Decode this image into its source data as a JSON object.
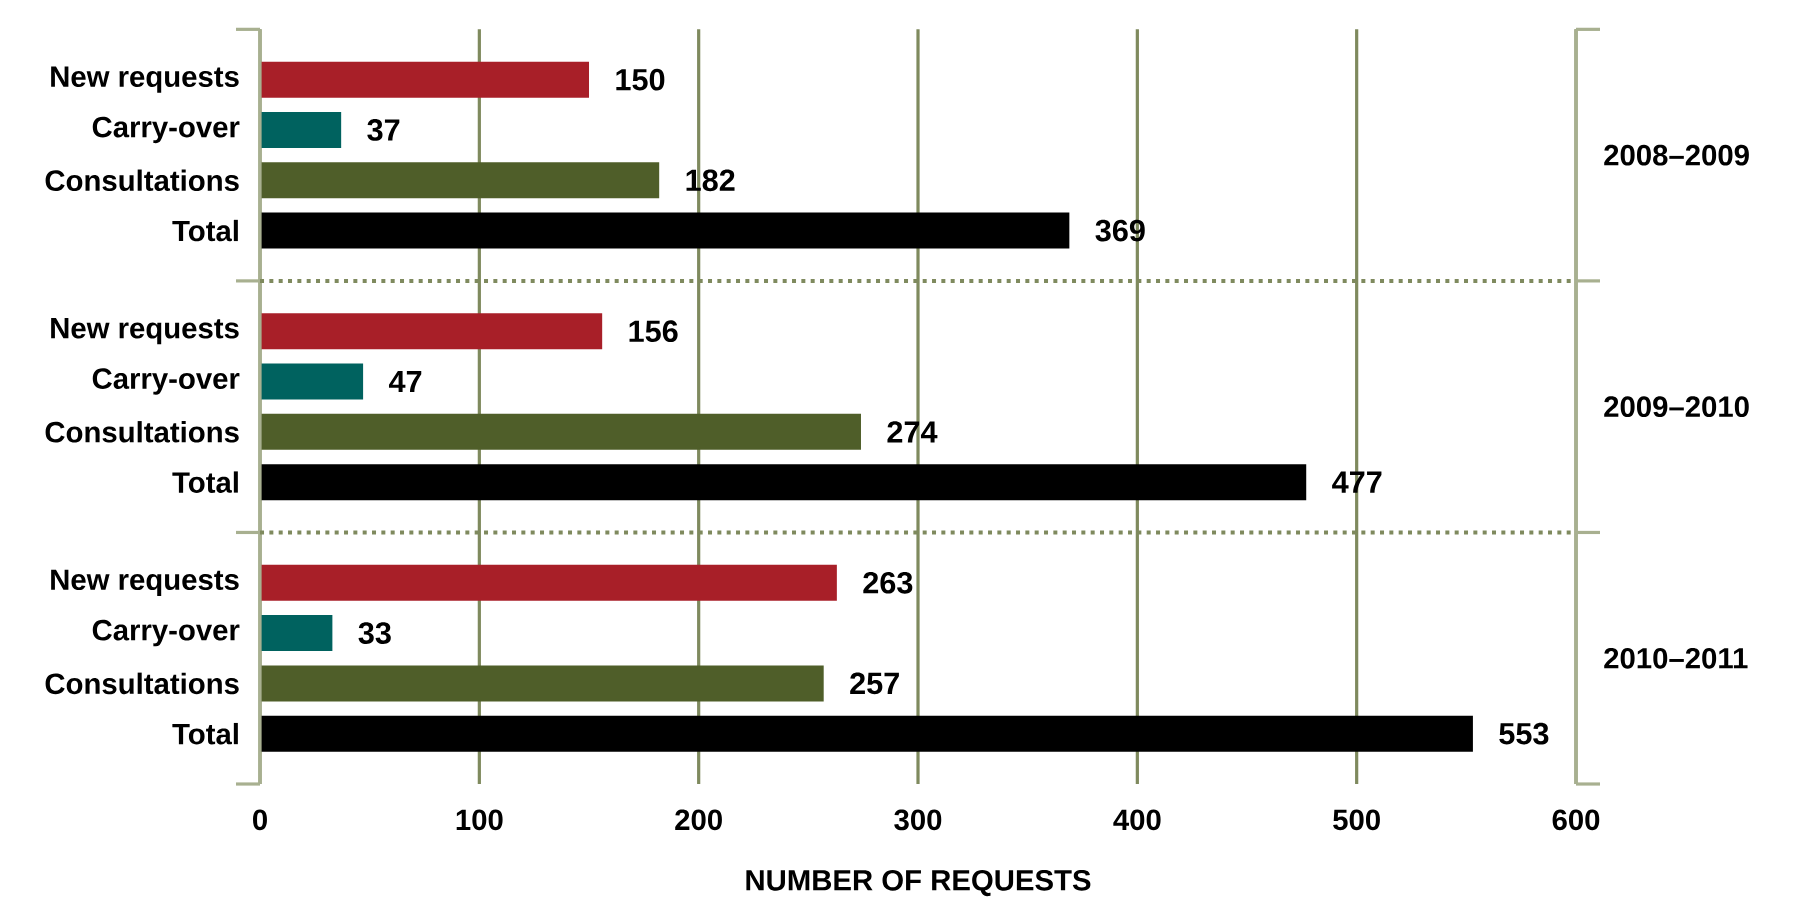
{
  "chart_data": {
    "type": "bar",
    "orientation": "horizontal",
    "xlabel": "NUMBER OF REQUESTS",
    "categories": [
      "New requests",
      "Carry-over",
      "Consultations",
      "Total",
      "New requests",
      "Carry-over",
      "Consultations",
      "Total",
      "New requests",
      "Carry-over",
      "Consultations",
      "Total"
    ],
    "values": [
      150,
      37,
      182,
      369,
      156,
      47,
      274,
      477,
      263,
      33,
      257,
      553
    ],
    "colors": [
      "#a81f28",
      "#00625f",
      "#4f5e29",
      "#000000",
      "#a81f28",
      "#00625f",
      "#4f5e29",
      "#000000",
      "#a81f28",
      "#00625f",
      "#4f5e29",
      "#000000"
    ],
    "xlim": [
      0,
      600
    ],
    "xticks": [
      0,
      100,
      200,
      300,
      400,
      500,
      600
    ],
    "grid": "x",
    "data_labels": true,
    "annotations": [
      "2008–2009",
      "2009–2010",
      "2010–2011"
    ]
  }
}
